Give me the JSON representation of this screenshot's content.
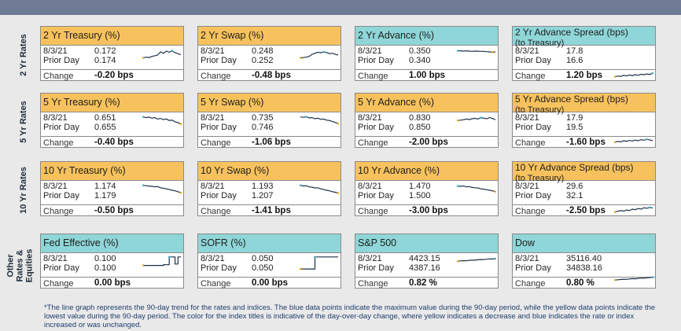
{
  "row_labels": [
    "2 Yr Rates",
    "5 Yr Rates",
    "10 Yr Rates",
    "Other Rates & Equities"
  ],
  "common": {
    "prior_label": "Prior Day",
    "change_label": "Change"
  },
  "rows": [
    [
      {
        "title": "2 Yr Treasury (%)",
        "color": "gold",
        "date": "8/3/21",
        "value": "0.172",
        "prior": "0.174",
        "change": "-0.20 bps",
        "trend": [
          0.3,
          0.35,
          0.32,
          0.4,
          0.45,
          0.5,
          0.72,
          0.62,
          0.78,
          0.7,
          0.8,
          0.66,
          0.6,
          0.52
        ]
      },
      {
        "title": "2 Yr Swap (%)",
        "color": "gold",
        "date": "8/3/21",
        "value": "0.248",
        "prior": "0.252",
        "change": "-0.48 bps",
        "trend": [
          0.3,
          0.32,
          0.35,
          0.4,
          0.55,
          0.62,
          0.7,
          0.66,
          0.72,
          0.68,
          0.6,
          0.63,
          0.55,
          0.5
        ]
      },
      {
        "title": "2 Yr Advance (%)",
        "color": "teal",
        "date": "8/3/21",
        "value": "0.350",
        "prior": "0.340",
        "change": "1.00 bps",
        "trend": [
          0.8,
          0.8,
          0.78,
          0.8,
          0.78,
          0.76,
          0.78,
          0.77,
          0.76,
          0.76,
          0.74,
          0.72,
          0.7,
          0.72
        ]
      },
      {
        "title": "2 Yr Advance Spread (bps)",
        "subtitle": "(to Treasury)",
        "color": "teal",
        "date": "8/3/21",
        "value": "17.8",
        "prior": "16.6",
        "change": "1.20 bps",
        "trend": [
          0.3,
          0.35,
          0.32,
          0.4,
          0.36,
          0.42,
          0.38,
          0.45,
          0.4,
          0.48,
          0.44,
          0.5,
          0.46,
          0.55
        ]
      }
    ],
    [
      {
        "title": "5 Yr Treasury (%)",
        "color": "gold",
        "date": "8/3/21",
        "value": "0.651",
        "prior": "0.655",
        "change": "-0.40 bps",
        "trend": [
          0.85,
          0.8,
          0.84,
          0.76,
          0.8,
          0.7,
          0.74,
          0.66,
          0.7,
          0.6,
          0.62,
          0.5,
          0.45,
          0.35
        ]
      },
      {
        "title": "5 Yr Swap (%)",
        "color": "gold",
        "date": "8/3/21",
        "value": "0.735",
        "prior": "0.746",
        "change": "-1.06 bps",
        "trend": [
          0.85,
          0.82,
          0.86,
          0.78,
          0.8,
          0.72,
          0.76,
          0.68,
          0.7,
          0.62,
          0.6,
          0.52,
          0.46,
          0.38
        ]
      },
      {
        "title": "5 Yr Advance (%)",
        "color": "gold",
        "date": "8/3/21",
        "value": "0.830",
        "prior": "0.850",
        "change": "-2.00 bps",
        "trend": [
          0.6,
          0.62,
          0.65,
          0.7,
          0.66,
          0.72,
          0.75,
          0.7,
          0.8,
          0.76,
          0.72,
          0.8,
          0.74,
          0.65
        ]
      },
      {
        "title": "5 Yr Advance Spread (bps)",
        "subtitle": "(to Treasury)",
        "color": "gold",
        "date": "8/3/21",
        "value": "17.9",
        "prior": "19.5",
        "change": "-1.60 bps",
        "trend": [
          0.4,
          0.45,
          0.42,
          0.5,
          0.46,
          0.52,
          0.48,
          0.55,
          0.5,
          0.58,
          0.54,
          0.6,
          0.56,
          0.5
        ]
      }
    ],
    [
      {
        "title": "10 Yr Treasury (%)",
        "color": "gold",
        "date": "8/3/21",
        "value": "1.174",
        "prior": "1.179",
        "change": "-0.50 bps",
        "trend": [
          0.85,
          0.82,
          0.8,
          0.78,
          0.74,
          0.76,
          0.68,
          0.64,
          0.6,
          0.56,
          0.5,
          0.46,
          0.4,
          0.32
        ]
      },
      {
        "title": "10 Yr Swap (%)",
        "color": "gold",
        "date": "8/3/21",
        "value": "1.193",
        "prior": "1.207",
        "change": "-1.41 bps",
        "trend": [
          0.85,
          0.8,
          0.82,
          0.74,
          0.72,
          0.66,
          0.68,
          0.6,
          0.56,
          0.5,
          0.46,
          0.4,
          0.36,
          0.3
        ]
      },
      {
        "title": "10 Yr Advance (%)",
        "color": "gold",
        "date": "8/3/21",
        "value": "1.470",
        "prior": "1.500",
        "change": "-3.00 bps",
        "trend": [
          0.8,
          0.78,
          0.8,
          0.74,
          0.76,
          0.7,
          0.68,
          0.66,
          0.6,
          0.58,
          0.54,
          0.5,
          0.46,
          0.4
        ]
      },
      {
        "title": "10 Yr Advance Spread (bps)",
        "subtitle": "(to Treasury)",
        "color": "gold",
        "date": "8/3/21",
        "value": "29.6",
        "prior": "32.1",
        "change": "-2.50 bps",
        "trend": [
          0.3,
          0.35,
          0.4,
          0.36,
          0.44,
          0.4,
          0.5,
          0.46,
          0.55,
          0.5,
          0.6,
          0.56,
          0.62,
          0.58
        ]
      }
    ],
    [
      {
        "title": "Fed Effective (%)",
        "color": "teal",
        "date": "8/3/21",
        "value": "0.100",
        "prior": "0.100",
        "change": "0.00 bps",
        "trend": [
          0.3,
          0.3,
          0.3,
          0.3,
          0.3,
          0.3,
          0.3,
          0.35,
          0.35,
          0.9,
          0.9,
          0.4,
          0.9,
          0.9
        ],
        "style": "step"
      },
      {
        "title": "SOFR (%)",
        "color": "teal",
        "date": "8/3/21",
        "value": "0.050",
        "prior": "0.050",
        "change": "0.00 bps",
        "trend": [
          0.05,
          0.05,
          0.05,
          0.05,
          0.05,
          0.9,
          0.9,
          0.9,
          0.9,
          0.9,
          0.9,
          0.9,
          0.9,
          0.9
        ],
        "style": "step"
      },
      {
        "title": "S&P 500",
        "color": "teal",
        "date": "8/3/21",
        "value": "4423.15",
        "prior": "4387.16",
        "change": "0.82 %",
        "trend": [
          0.6,
          0.62,
          0.64,
          0.63,
          0.66,
          0.68,
          0.67,
          0.7,
          0.72,
          0.71,
          0.74,
          0.76,
          0.75,
          0.78
        ]
      },
      {
        "title": "Dow",
        "color": "teal",
        "date": "8/3/21",
        "value": "35116.40",
        "prior": "34838.16",
        "change": "0.80 %",
        "trend": [
          0.6,
          0.62,
          0.64,
          0.66,
          0.65,
          0.68,
          0.7,
          0.69,
          0.72,
          0.74,
          0.73,
          0.76,
          0.78,
          0.8
        ]
      }
    ]
  ],
  "colors": {
    "gold": "#f7c25e",
    "teal": "#8fd6d8",
    "line": "#1f2f4a",
    "max": "#3bb3c4",
    "min": "#f2a900"
  },
  "footnote": "*The line graph represents the 90-day trend for the rates and indices. The blue data points indicate the maximum value during the 90-day period, while the yellow data points indicate the lowest value during the 90-day period. The color for the index titles is indicative of the day-over-day change, where yellow indicates a decrease and blue indicates the rate or index increased or was unchanged."
}
